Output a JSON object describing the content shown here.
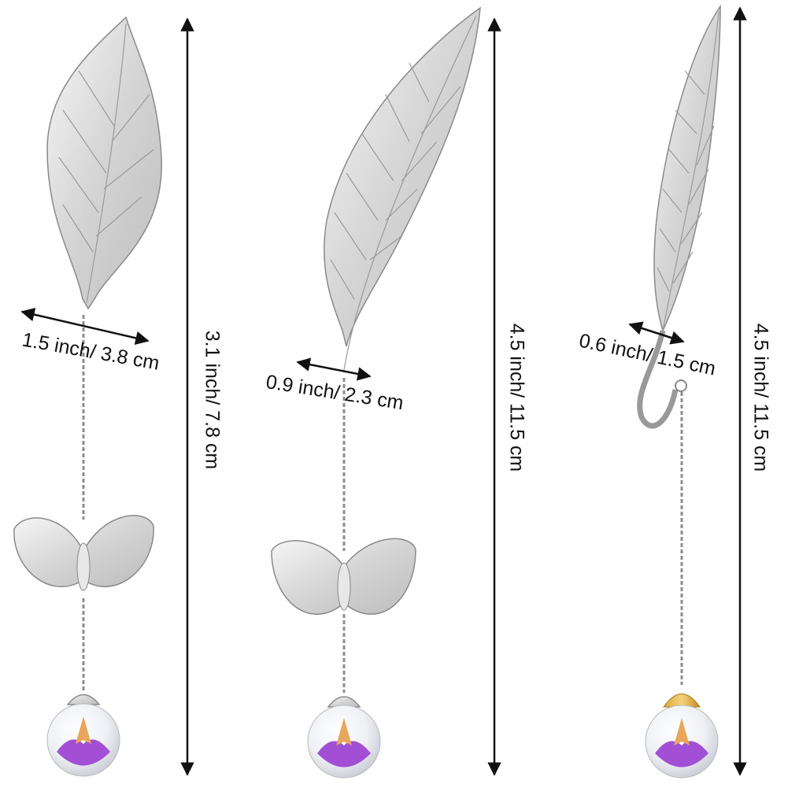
{
  "items": [
    {
      "width_label": "1.5 inch/ 3.8 cm",
      "height_label": "3.1 inch/ 7.8 cm"
    },
    {
      "width_label": "0.9 inch/ 2.3 cm",
      "height_label": "4.5 inch/ 11.5 cm"
    },
    {
      "width_label": "0.6 inch/ 1.5 cm",
      "height_label": "4.5 inch/ 11.5 cm"
    }
  ]
}
